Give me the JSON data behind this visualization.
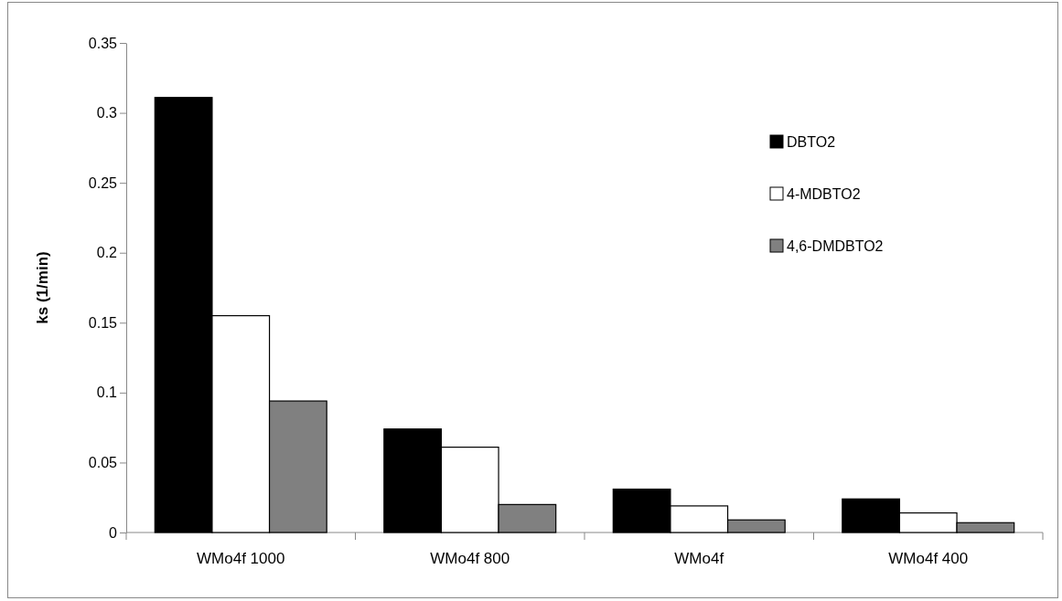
{
  "chart_data": {
    "type": "bar",
    "ylabel": "ks (1/min)",
    "categories": [
      "WMo4f 1000",
      "WMo4f 800",
      "WMo4f",
      "WMo4f 400"
    ],
    "series": [
      {
        "name": "DBTO2",
        "color": "#000000",
        "values": [
          0.311,
          0.074,
          0.031,
          0.024
        ]
      },
      {
        "name": "4-MDBTO2",
        "color": "#ffffff",
        "values": [
          0.155,
          0.061,
          0.019,
          0.014
        ]
      },
      {
        "name": "4,6-DMDBTO2",
        "color": "#808080",
        "values": [
          0.094,
          0.02,
          0.009,
          0.007
        ]
      }
    ],
    "ylim": [
      0,
      0.35
    ],
    "yticks": [
      0,
      0.05,
      0.1,
      0.15,
      0.2,
      0.25,
      0.3,
      0.35
    ],
    "grid": false,
    "legend": "top right"
  }
}
